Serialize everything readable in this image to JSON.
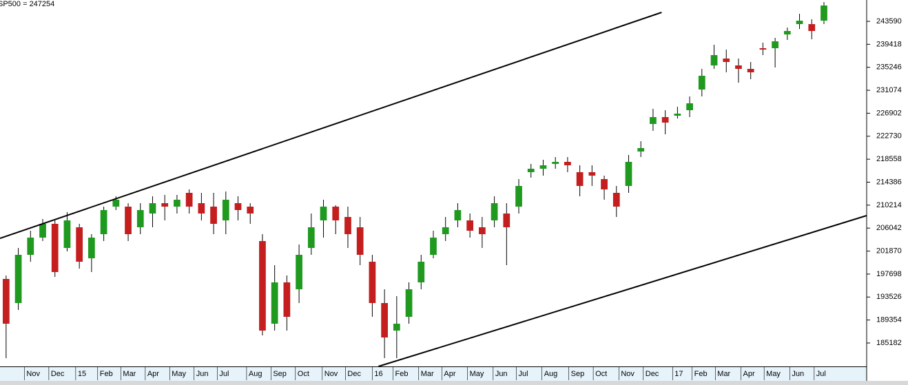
{
  "chart_data": {
    "type": "candlestick",
    "title": "SP500 = 247254",
    "up_color": "#1f9a1f",
    "down_color": "#c41e1e",
    "open": [
      196813,
      192436,
      201191,
      204318,
      206819,
      202442,
      206194,
      200565,
      204943,
      209946,
      209946,
      206194,
      208695,
      210571,
      209946,
      212447,
      210571,
      209946,
      207445,
      210571,
      209946,
      203692,
      188684,
      196188,
      194938,
      202442,
      207445,
      209946,
      208070,
      206194,
      199940,
      192436,
      187433,
      189935,
      196188,
      201191,
      204943,
      207445,
      207445,
      206194,
      207445,
      208695,
      209946,
      216200,
      216825,
      217700,
      218076,
      216200,
      216200,
      214949,
      212447,
      213698,
      219952,
      224954,
      226205,
      226455,
      227456,
      231208,
      235586,
      236836,
      235586,
      234960,
      238712,
      238712,
      241214,
      243090,
      243090,
      243715
    ],
    "high": [
      197439,
      202442,
      205568,
      207695,
      207445,
      208945,
      206819,
      204943,
      209946,
      211822,
      210571,
      210571,
      211822,
      212072,
      212072,
      213073,
      212447,
      212447,
      212698,
      211822,
      210571,
      204943,
      199315,
      197439,
      203067,
      208695,
      211197,
      210196,
      209946,
      208070,
      201191,
      194938,
      193687,
      196188,
      201191,
      205568,
      208070,
      210571,
      208695,
      208070,
      211822,
      210571,
      214949,
      217700,
      218451,
      218951,
      218951,
      217450,
      217450,
      215574,
      213698,
      219326,
      221828,
      227706,
      227456,
      228081,
      229957,
      234960,
      239338,
      238462,
      236836,
      236211,
      239713,
      240588,
      242464,
      244966,
      243965,
      247092
    ],
    "low": [
      182430,
      191186,
      199940,
      203692,
      197189,
      201816,
      198689,
      198064,
      203692,
      209321,
      203692,
      204943,
      206194,
      207445,
      208695,
      208695,
      207445,
      204943,
      204943,
      207445,
      206819,
      186558,
      187433,
      187433,
      192436,
      201191,
      204318,
      204943,
      202442,
      199315,
      189935,
      182430,
      182430,
      188684,
      194938,
      200565,
      203692,
      206194,
      204318,
      202442,
      206194,
      199315,
      208695,
      215199,
      215574,
      216825,
      216200,
      211822,
      213698,
      211197,
      208070,
      212447,
      218951,
      223704,
      223079,
      225955,
      226205,
      229957,
      234960,
      234335,
      232459,
      233084,
      237461,
      235210,
      240213,
      242214,
      240338,
      243090
    ],
    "close": [
      188684,
      201191,
      204318,
      206819,
      198064,
      207445,
      199940,
      204318,
      209321,
      211197,
      204943,
      209321,
      210571,
      209946,
      211197,
      209946,
      208695,
      206819,
      211197,
      209321,
      208695,
      187433,
      196188,
      189935,
      201191,
      206194,
      209946,
      207445,
      204943,
      201191,
      192436,
      186183,
      188684,
      194938,
      199940,
      204318,
      206194,
      209321,
      205568,
      204943,
      210571,
      206194,
      213698,
      216825,
      217450,
      218076,
      217450,
      213698,
      215574,
      213073,
      209946,
      218076,
      220577,
      226205,
      225204,
      226830,
      228707,
      233710,
      237461,
      236211,
      234960,
      234335,
      238462,
      239963,
      241839,
      243715,
      241839,
      246466
    ],
    "trendlines": [
      {
        "x": [
          -0.5,
          53.7
        ],
        "y": [
          204192,
          245216
        ]
      },
      {
        "x": [
          30.5,
          70.5
        ],
        "y": [
          180930,
          208320
        ]
      }
    ],
    "xlim": [
      -0.5,
      70.5
    ],
    "xticks": [
      {
        "value": 1.5,
        "label": "Nov"
      },
      {
        "value": 3.5,
        "label": "Dec"
      },
      {
        "value": 5.7,
        "label": "15"
      },
      {
        "value": 7.5,
        "label": "Feb"
      },
      {
        "value": 9.4,
        "label": "Mar"
      },
      {
        "value": 11.4,
        "label": "Apr"
      },
      {
        "value": 13.4,
        "label": "May"
      },
      {
        "value": 15.4,
        "label": "Jun"
      },
      {
        "value": 17.3,
        "label": "Jul"
      },
      {
        "value": 19.7,
        "label": "Aug"
      },
      {
        "value": 21.7,
        "label": "Sep"
      },
      {
        "value": 23.7,
        "label": "Oct"
      },
      {
        "value": 25.9,
        "label": "Nov"
      },
      {
        "value": 27.8,
        "label": "Dec"
      },
      {
        "value": 30.0,
        "label": "16"
      },
      {
        "value": 31.7,
        "label": "Feb"
      },
      {
        "value": 33.8,
        "label": "Mar"
      },
      {
        "value": 35.7,
        "label": "Apr"
      },
      {
        "value": 37.8,
        "label": "May"
      },
      {
        "value": 39.9,
        "label": "Jun"
      },
      {
        "value": 41.8,
        "label": "Jul"
      },
      {
        "value": 43.9,
        "label": "Aug"
      },
      {
        "value": 46.1,
        "label": "Sep"
      },
      {
        "value": 48.1,
        "label": "Oct"
      },
      {
        "value": 50.2,
        "label": "Nov"
      },
      {
        "value": 52.2,
        "label": "Dec"
      },
      {
        "value": 54.6,
        "label": "17"
      },
      {
        "value": 56.2,
        "label": "Feb"
      },
      {
        "value": 58.1,
        "label": "Mar"
      },
      {
        "value": 60.2,
        "label": "Apr"
      },
      {
        "value": 62.1,
        "label": "May"
      },
      {
        "value": 64.2,
        "label": "Jun"
      },
      {
        "value": 66.2,
        "label": "Jul"
      }
    ],
    "ylim": [
      180930,
      247467
    ],
    "yticks": [
      185182,
      189354,
      193526,
      197698,
      201870,
      206042,
      210214,
      214386,
      218558,
      222730,
      226902,
      231074,
      235246,
      239418,
      243590
    ]
  }
}
